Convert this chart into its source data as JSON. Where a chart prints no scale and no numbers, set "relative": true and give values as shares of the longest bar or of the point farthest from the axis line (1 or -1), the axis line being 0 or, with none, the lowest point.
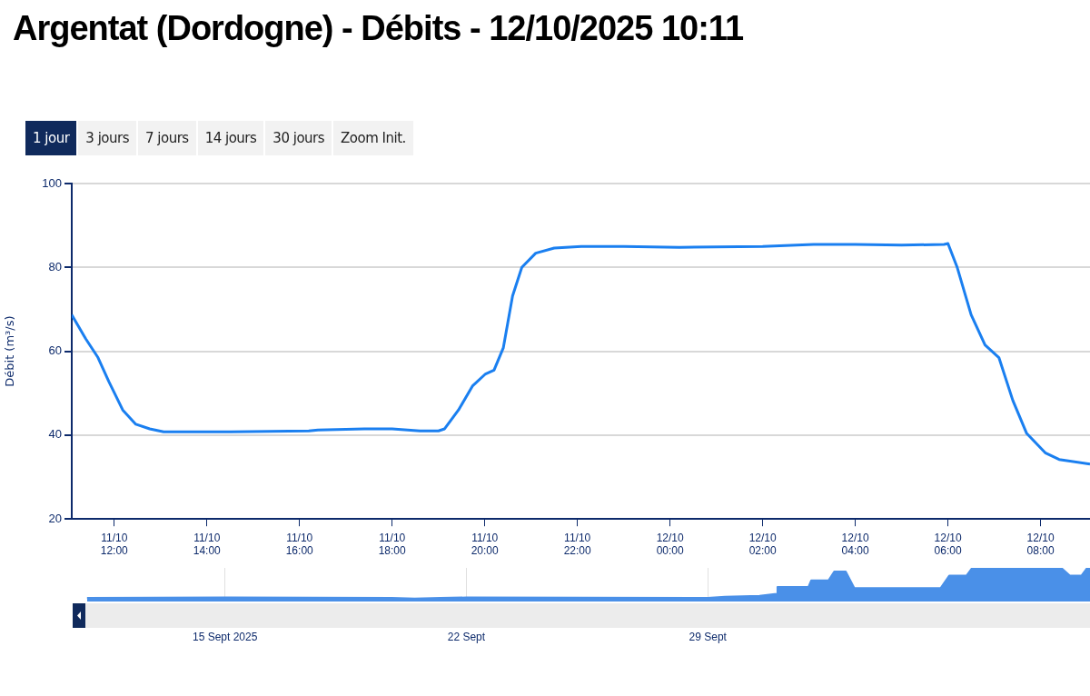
{
  "chart_data": [
    {
      "type": "line",
      "title": "Argentat (Dordogne) - Débits - 12/10/2025 10:11",
      "ylabel": "Débit (m³/s)",
      "annotations": [
        "1 jour",
        "3 jours",
        "7 jours",
        "14 jours",
        "30 jours",
        "Zoom Init."
      ],
      "series": [
        {
          "color": "#1a7ff0",
          "x": [
            "2025-10-11T11:05",
            "2025-10-11T11:23",
            "2025-10-11T11:39",
            "2025-10-11T11:53",
            "2025-10-11T12:11",
            "2025-10-11T12:28",
            "2025-10-11T12:46",
            "2025-10-11T13:04",
            "2025-10-11T13:27",
            "2025-10-11T14:30",
            "2025-10-11T16:12",
            "2025-10-11T16:24",
            "2025-10-11T17:24",
            "2025-10-11T18:00",
            "2025-10-11T18:36",
            "2025-10-11T19:00",
            "2025-10-11T19:08",
            "2025-10-11T19:26",
            "2025-10-11T19:44",
            "2025-10-11T20:01",
            "2025-10-11T20:12",
            "2025-10-11T20:24",
            "2025-10-11T20:36",
            "2025-10-11T20:48",
            "2025-10-11T21:06",
            "2025-10-11T21:30",
            "2025-10-11T22:05",
            "2025-10-11T23:00",
            "2025-10-12T00:12",
            "2025-10-12T02:00",
            "2025-10-12T03:06",
            "2025-10-12T04:00",
            "2025-10-12T05:00",
            "2025-10-12T05:55",
            "2025-10-12T06:00",
            "2025-10-12T06:12",
            "2025-10-12T06:30",
            "2025-10-12T06:48",
            "2025-10-12T07:06",
            "2025-10-12T07:24",
            "2025-10-12T07:42",
            "2025-10-12T08:06",
            "2025-10-12T08:24",
            "2025-10-12T09:04"
          ],
          "values": [
            68.7,
            63,
            58.5,
            52.8,
            46,
            42.6,
            41.5,
            40.8,
            40.8,
            40.8,
            41,
            41.2,
            41.5,
            41.5,
            41,
            41,
            41.5,
            46,
            51.7,
            54.6,
            55.5,
            60.8,
            73.2,
            80,
            83.4,
            84.6,
            85,
            85,
            84.8,
            85,
            85.5,
            85.5,
            85.3,
            85.5,
            85.7,
            80,
            68.7,
            61.5,
            58.5,
            48.3,
            40.4,
            35.8,
            34.2,
            33.1
          ]
        }
      ],
      "xlim": [
        "2025-10-11T11:05",
        "2025-10-12T09:04"
      ],
      "ylim": [
        20,
        100
      ],
      "yticks": [
        20,
        40,
        60,
        80,
        100
      ],
      "xticks": [
        {
          "value": "2025-10-11T12:00",
          "label": "11/10 12:00"
        },
        {
          "value": "2025-10-11T14:00",
          "label": "11/10 14:00"
        },
        {
          "value": "2025-10-11T16:00",
          "label": "11/10 16:00"
        },
        {
          "value": "2025-10-11T18:00",
          "label": "11/10 18:00"
        },
        {
          "value": "2025-10-11T20:00",
          "label": "11/10 20:00"
        },
        {
          "value": "2025-10-11T22:00",
          "label": "11/10 22:00"
        },
        {
          "value": "2025-10-12T00:00",
          "label": "12/10 00:00"
        },
        {
          "value": "2025-10-12T02:00",
          "label": "12/10 02:00"
        },
        {
          "value": "2025-10-12T04:00",
          "label": "12/10 04:00"
        },
        {
          "value": "2025-10-12T06:00",
          "label": "12/10 06:00"
        },
        {
          "value": "2025-10-12T08:00",
          "label": "12/10 08:00"
        }
      ],
      "grid": "y",
      "legend": false
    },
    {
      "type": "area",
      "relative": true,
      "series": [
        {
          "color": "#4a90e8",
          "x": [
            "2025-09-11",
            "2025-09-15",
            "2025-09-19T20:00",
            "2025-09-20T12:00",
            "2025-09-21T06:00",
            "2025-09-22",
            "2025-09-29",
            "2025-09-29T12:00",
            "2025-09-30T12:00",
            "2025-10-01T00:00",
            "2025-10-01T00:30",
            "2025-10-01T22:00",
            "2025-10-02T00:00",
            "2025-10-02T12:00",
            "2025-10-02T16:00",
            "2025-10-03T00:00",
            "2025-10-03T06:00",
            "2025-10-05T18:00",
            "2025-10-06T00:00",
            "2025-10-06T12:00",
            "2025-10-06T16:00",
            "2025-10-09T06:00",
            "2025-10-09T12:00",
            "2025-10-09T20:00",
            "2025-10-10T00:00",
            "2025-10-10T02:00"
          ],
          "values": [
            0.11,
            0.12,
            0.11,
            0.09,
            0.11,
            0.12,
            0.11,
            0.14,
            0.17,
            0.23,
            0.43,
            0.43,
            0.63,
            0.63,
            0.89,
            0.89,
            0.4,
            0.4,
            0.77,
            0.77,
            1,
            1,
            0.77,
            0.77,
            1,
            1
          ]
        }
      ],
      "xlim": [
        "2025-09-10T14:00",
        "2025-10-10T02:00"
      ],
      "xticks": [
        {
          "value": "2025-09-15",
          "label": "15 Sept 2025"
        },
        {
          "value": "2025-09-22",
          "label": "22 Sept"
        },
        {
          "value": "2025-09-29",
          "label": "29 Sept"
        }
      ],
      "grid": "x",
      "legend": false
    }
  ]
}
